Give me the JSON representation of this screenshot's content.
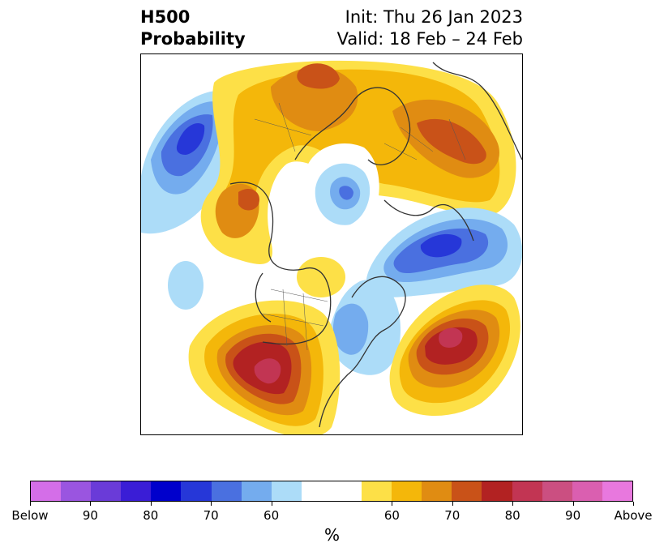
{
  "title": {
    "left_line1": "H500",
    "left_line2": "Probability",
    "right_line1": "Init: Thu 26 Jan 2023",
    "right_line2": "Valid: 18 Feb – 24 Feb"
  },
  "colorbar": {
    "unit": "%",
    "colors": [
      "#d46ee8",
      "#9a55e0",
      "#6a3bd8",
      "#3a1dd6",
      "#0000cc",
      "#2637d8",
      "#4a70e0",
      "#74acee",
      "#acdcf8",
      "#ffffff",
      "#ffffff",
      "#fde047",
      "#f4b70a",
      "#e08c12",
      "#c95218",
      "#b22222",
      "#c23553",
      "#cb4f81",
      "#da5fb0",
      "#e878de"
    ],
    "tick_labels": [
      "Below",
      "90",
      "80",
      "70",
      "60",
      "60",
      "70",
      "80",
      "90",
      "Above"
    ]
  },
  "map": {
    "projection": "polar-stereographic",
    "anomalies": [
      {
        "name": "north-pacific-low",
        "category": "below",
        "peak": "80"
      },
      {
        "name": "arctic-low",
        "category": "below",
        "peak": "60"
      },
      {
        "name": "north-atlantic-low",
        "category": "below",
        "peak": "80"
      },
      {
        "name": "eastern-canada-low",
        "category": "below",
        "peak": "60"
      },
      {
        "name": "western-us-high",
        "category": "above",
        "peak": "above"
      },
      {
        "name": "central-atlantic-high",
        "category": "above",
        "peak": "above"
      },
      {
        "name": "siberia-high",
        "category": "above",
        "peak": "70"
      },
      {
        "name": "eurasia-high",
        "category": "above",
        "peak": "70"
      }
    ]
  }
}
